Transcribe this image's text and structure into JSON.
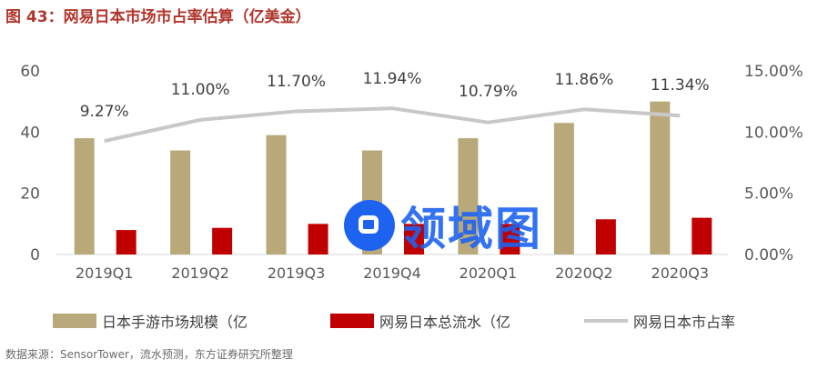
{
  "figure": {
    "title": "图 43：网易日本市场市占率估算（亿美金）",
    "source": "数据来源：SensorTower，流水预测，东方证券研究所整理",
    "watermark": "领域图",
    "watermark_icon": "link-icon"
  },
  "colors": {
    "title": "#b1362d",
    "market_bar": "#b9a97a",
    "netease_bar": "#c00000",
    "share_line": "#c8c8c8",
    "watermark": "#1e63f0"
  },
  "chart_data": {
    "type": "bar",
    "categories": [
      "2019Q1",
      "2019Q2",
      "2019Q3",
      "2019Q4",
      "2020Q1",
      "2020Q2",
      "2020Q3"
    ],
    "series": [
      {
        "name": "日本手游市场规模（亿",
        "type": "bar",
        "axis": "left",
        "values": [
          38,
          34,
          39,
          34,
          38,
          43,
          50
        ]
      },
      {
        "name": "网易日本总流水（亿",
        "type": "bar",
        "axis": "left",
        "values": [
          8,
          8.7,
          10,
          10,
          10,
          11.5,
          12
        ]
      },
      {
        "name": "网易日本市占率",
        "type": "line",
        "axis": "right",
        "values": [
          9.27,
          11.0,
          11.7,
          11.94,
          10.79,
          11.86,
          11.34
        ],
        "data_labels": [
          "9.27%",
          "11.00%",
          "11.70%",
          "11.94%",
          "10.79%",
          "11.86%",
          "11.34%"
        ]
      }
    ],
    "ylim_left": [
      0,
      60
    ],
    "yticks_left": [
      "0",
      "20",
      "40",
      "60"
    ],
    "ylim_right": [
      0,
      15
    ],
    "yticks_right": [
      "0.00%",
      "5.00%",
      "10.00%",
      "15.00%"
    ],
    "grid": false,
    "legend_position": "bottom"
  }
}
